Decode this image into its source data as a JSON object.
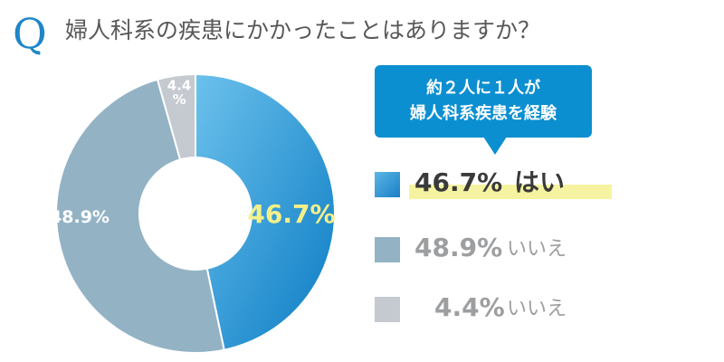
{
  "header": {
    "q_mark": "Q",
    "question": "婦人科系の疾患にかかったことはありますか？"
  },
  "callout": {
    "line1": "約２人に１人が",
    "line2": "婦人科系疾患を経験"
  },
  "legend": [
    {
      "pct": "46.7%",
      "label": "はい"
    },
    {
      "pct": "48.9%",
      "label": "いいえ"
    },
    {
      "pct": "4.4%",
      "label": "いいえ"
    }
  ],
  "colors": {
    "accent": "#1e86c8",
    "yes": "#1a8ad0",
    "no": "#93b3c5",
    "other": "#c5c9d0",
    "callout": "#0c8fd0",
    "highlight": "#f6f3a0",
    "yes_label": "#f4f08a"
  },
  "chart_data": {
    "type": "pie",
    "donut": true,
    "categories": [
      "はい",
      "いいえ",
      "いいえ"
    ],
    "values": [
      46.7,
      48.9,
      4.4
    ],
    "labels": [
      "46.7%",
      "48.9%",
      "4.4\n%"
    ],
    "colors": [
      "#1a8ad0",
      "#93b3c5",
      "#c5c9d0"
    ],
    "start_angle_deg": 0,
    "direction": "clockwise"
  }
}
